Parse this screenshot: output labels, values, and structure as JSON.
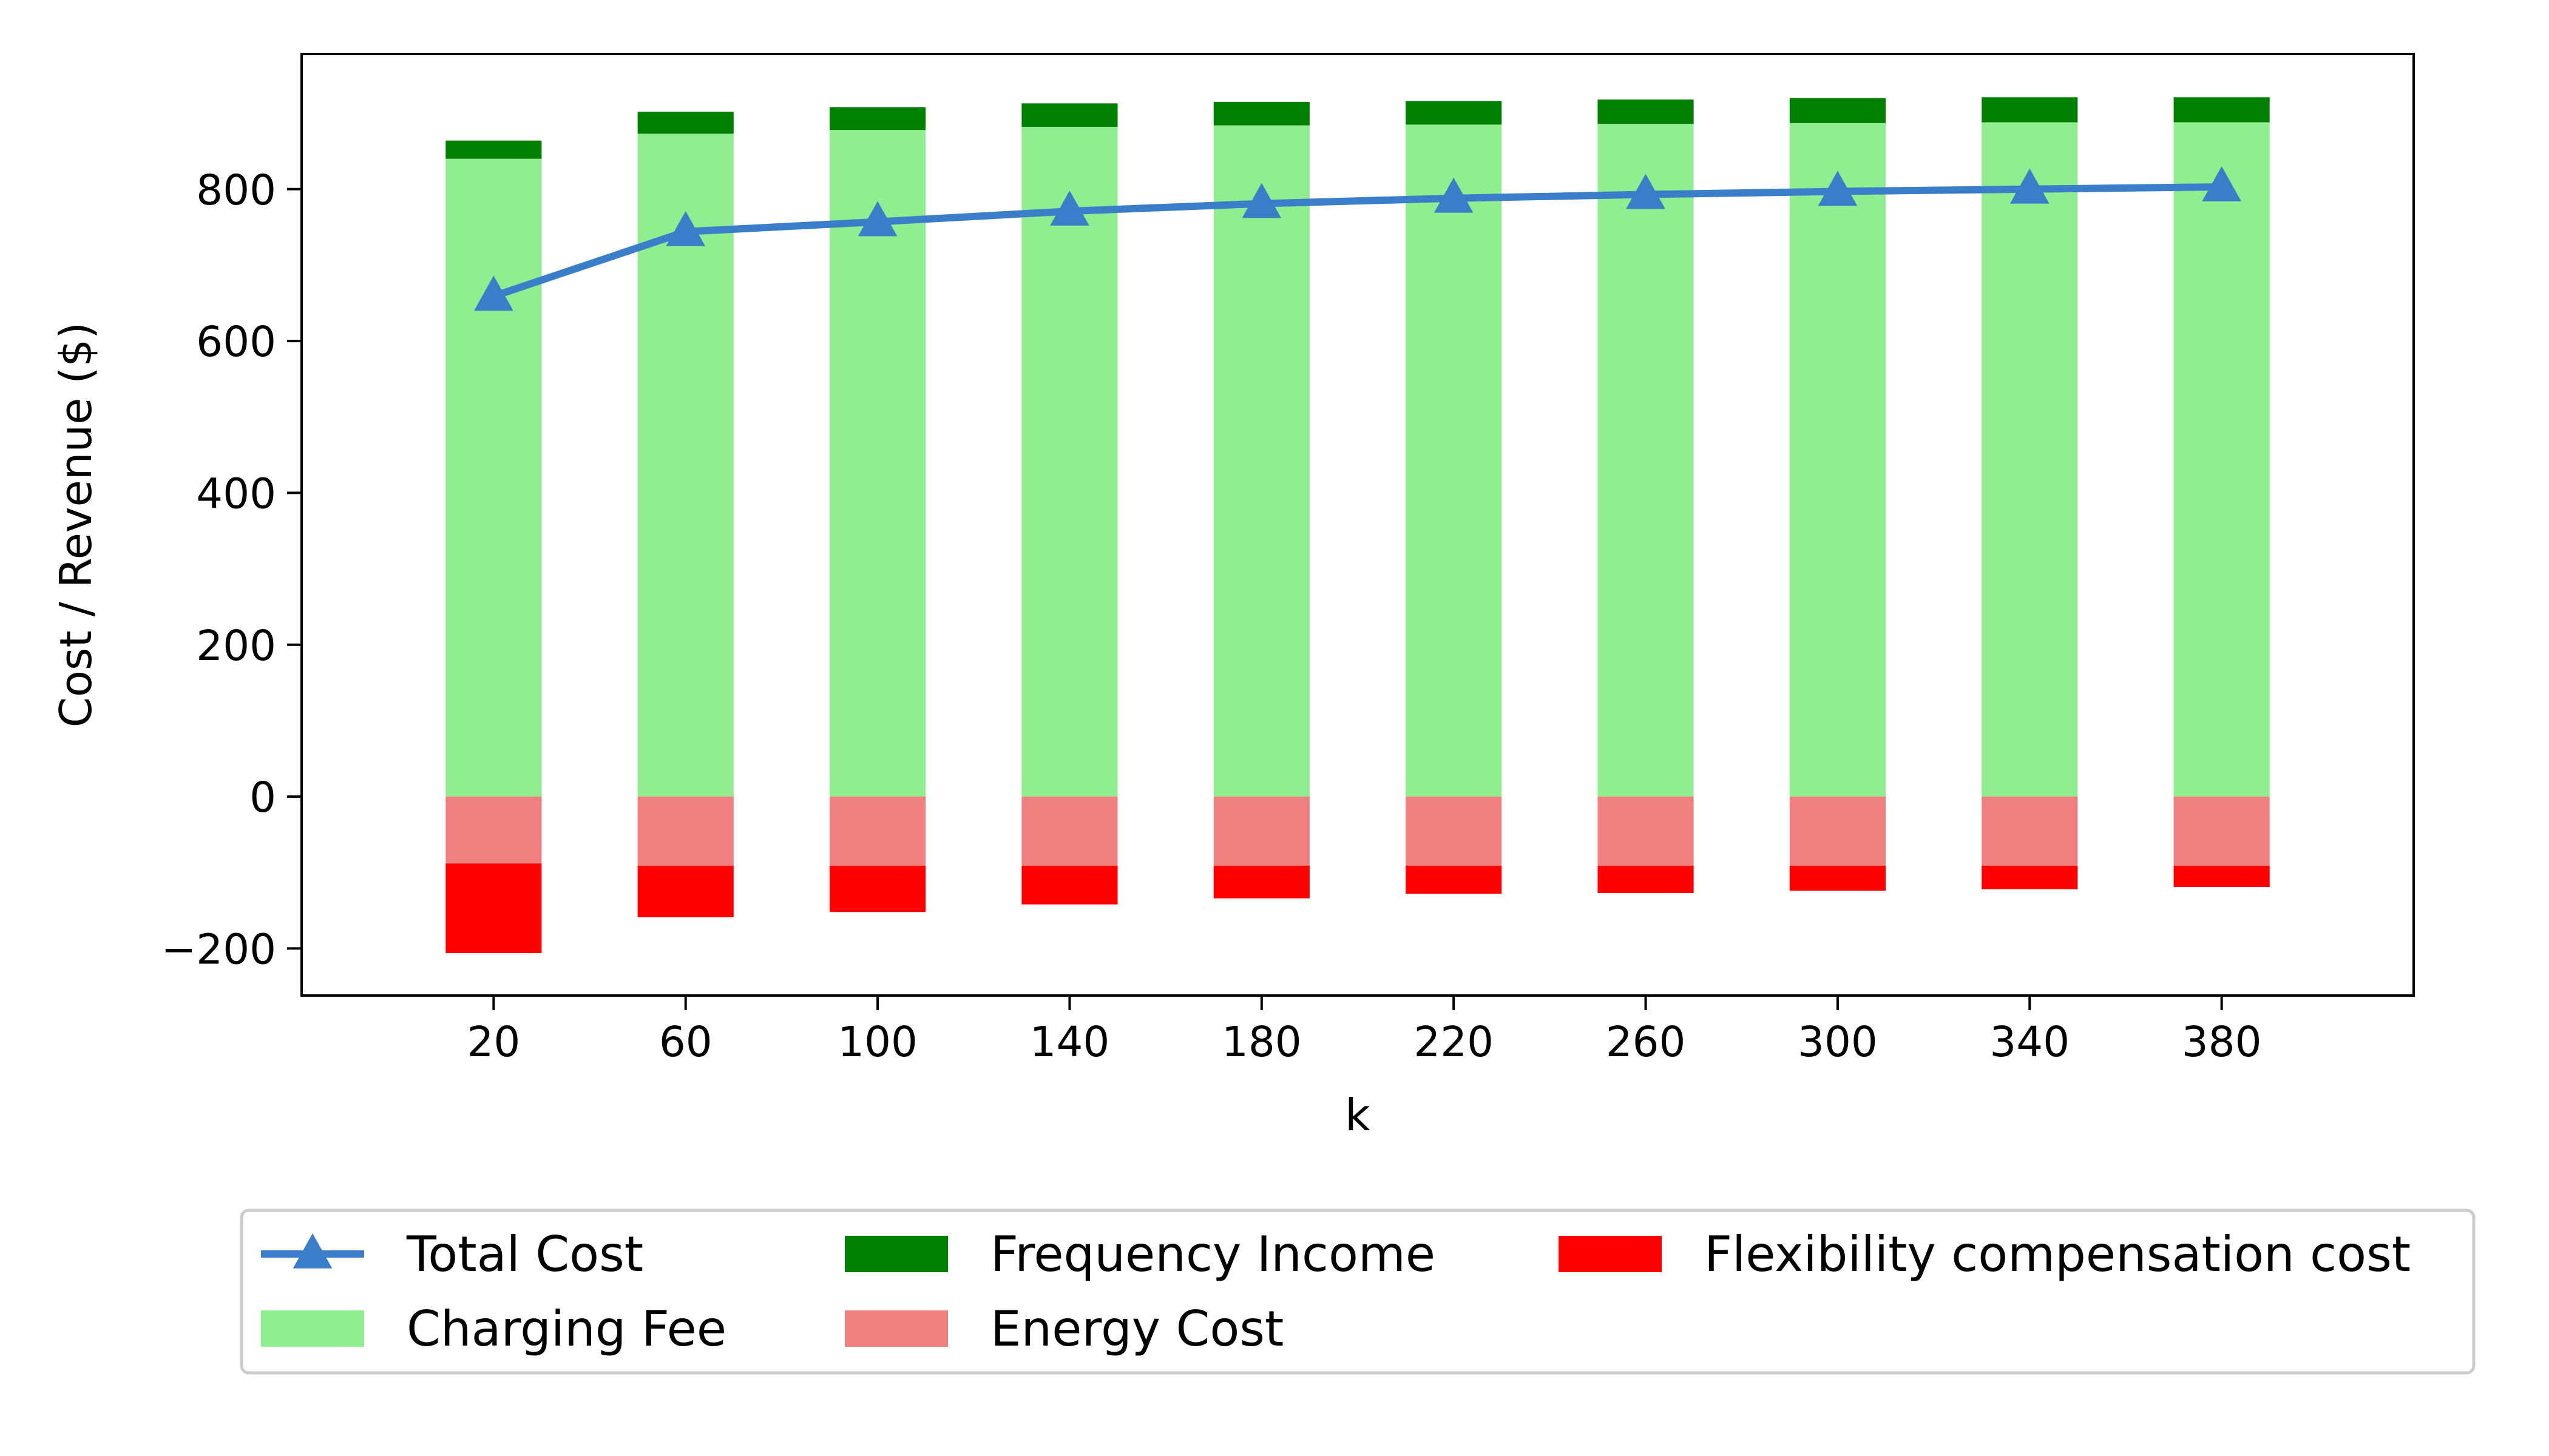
{
  "chart_data": {
    "type": "bar",
    "title": "",
    "xlabel": "k",
    "ylabel": "Cost / Revenue ($)",
    "categories": [
      "20",
      "60",
      "100",
      "140",
      "180",
      "220",
      "260",
      "300",
      "340",
      "380"
    ],
    "ylim": [
      -262,
      978
    ],
    "yticks": [
      {
        "value": -200,
        "label": "−200"
      },
      {
        "value": 0,
        "label": "0"
      },
      {
        "value": 200,
        "label": "200"
      },
      {
        "value": 400,
        "label": "400"
      },
      {
        "value": 600,
        "label": "600"
      },
      {
        "value": 800,
        "label": "800"
      }
    ],
    "series": [
      {
        "name": "Charging Fee",
        "kind": "bar",
        "color": "#90ee90",
        "values": [
          840,
          873,
          878,
          882,
          884,
          885,
          886,
          887,
          888,
          888
        ]
      },
      {
        "name": "Frequency Income",
        "kind": "bar",
        "color": "#008000",
        "values": [
          24,
          29,
          30,
          31,
          31,
          31,
          32,
          33,
          33,
          33
        ]
      },
      {
        "name": "Energy Cost",
        "kind": "bar",
        "color": "#f08080",
        "values": [
          -88,
          -91,
          -91,
          -91,
          -91,
          -91,
          -91,
          -91,
          -91,
          -91
        ]
      },
      {
        "name": "Flexibility compensation cost",
        "kind": "bar",
        "color": "#ff0000",
        "values": [
          -118,
          -68,
          -61,
          -51,
          -43,
          -37,
          -36,
          -33,
          -31,
          -28
        ]
      },
      {
        "name": "Total Cost",
        "kind": "line",
        "color": "#3a7dc9",
        "marker": "triangle",
        "values": [
          659,
          744,
          757,
          771,
          781,
          788,
          793,
          797,
          800,
          803
        ]
      }
    ],
    "legend": {
      "position": "bottom",
      "items": [
        "Total Cost",
        "Charging Fee",
        "Frequency Income",
        "Energy Cost",
        "Flexibility compensation cost"
      ]
    }
  }
}
